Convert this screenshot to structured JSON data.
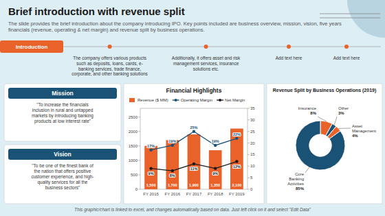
{
  "title": "Brief introduction with revenue split",
  "subtitle": "The slide provides the brief introduction about the company introducing IPO. Key points included are business overview, mission, vision, five years financials (revenue, operating & net margin) and revenue split by business operations.",
  "annotations": [
    "Introduction",
    "The company offers various products\nsuch as deposits, loans, cards, e-\nbanking services, trade finance,\ncorporate, and other banking solutions",
    "Additionally, it offers asset and risk\nmanagement services, insurance\nsolutions etc.",
    "Add text here",
    "Add text here",
    "Mission",
    "\"To increase the financials\ninclusion in rural and untapped\nmarkets by introducing banking\nproducts at low interest rate\"",
    "Vision",
    "\"To be one of the finest bank of\nthe nation that offers positive\ncustomer experience, and high-\nquality services for all the\nbusiness sectors\"",
    "This graphic/chart is linked to excel, and changes automatically based on data. Just left click on it and select \"Edit Data\""
  ],
  "chart_data": [
    {
      "type": "bar",
      "title": "Financial Highlights",
      "categories": [
        "FY 2015",
        "FY 2016",
        "FY 2017",
        "FY 2018",
        "FY 2019"
      ],
      "series": [
        {
          "name": "Revenue ($ MM)",
          "type": "bar",
          "color": "#e8622a",
          "values": [
            1500,
            1700,
            1900,
            1350,
            2100
          ],
          "value_labels": [
            "1,500",
            "1,700",
            "1,900",
            "1,350",
            "2,100"
          ]
        },
        {
          "name": "Operating Margin",
          "type": "line",
          "axis": "y2",
          "color": "#1a5276",
          "marker": "circle",
          "values": [
            17,
            19,
            25,
            19,
            22
          ],
          "value_labels": [
            "17%",
            "19%",
            "25%",
            "19%",
            "22%"
          ]
        },
        {
          "name": "Net Margin",
          "type": "line",
          "axis": "y2",
          "color": "#1a1a1a",
          "marker": "circle",
          "values": [
            9,
            8,
            11,
            9,
            12
          ],
          "value_labels": [
            "9%",
            "8%",
            "11%",
            "9%",
            "12%"
          ]
        }
      ],
      "ylim": [
        0,
        2800
      ],
      "yticks": [
        0,
        500,
        1000,
        1500,
        2000,
        2500
      ],
      "y2lim": [
        0,
        35
      ],
      "y2ticks": [
        0,
        5,
        10,
        15,
        20,
        25,
        30,
        35
      ],
      "grid": false,
      "legend": "upper left",
      "data_labels": true
    },
    {
      "type": "donut",
      "title": "Revenue Split by Business Operations (2019)",
      "categories": [
        "Insurance",
        "Other",
        "Asset\nManagement",
        "Core\nBanking\nActivities"
      ],
      "values": [
        8,
        3,
        4,
        85
      ],
      "value_labels": [
        "8%",
        "3%",
        "4%",
        "85%"
      ],
      "colors": [
        "#e8622a",
        "#1a5276",
        "#e8622a",
        "#1a5276"
      ],
      "data_labels": true
    }
  ]
}
